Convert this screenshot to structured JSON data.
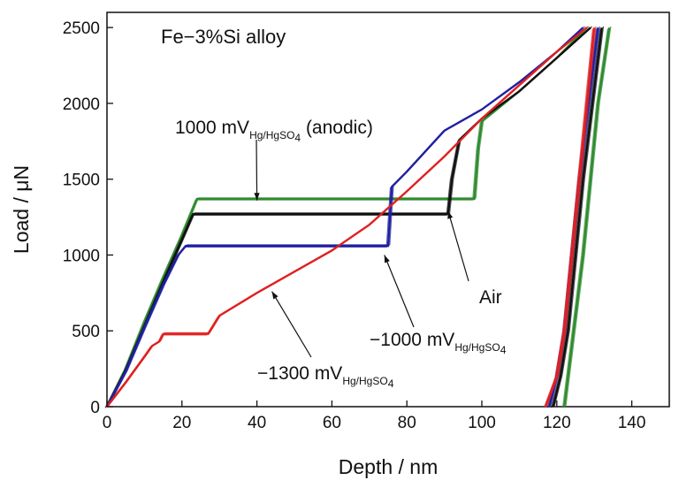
{
  "chart_data": {
    "type": "line",
    "title": "Fe−3%Si alloy",
    "xlabel": "Depth / nm",
    "ylabel": "Load / μN",
    "xlim": [
      0,
      150
    ],
    "ylim": [
      0,
      2600
    ],
    "xticks": [
      0,
      20,
      40,
      60,
      80,
      100,
      120,
      140
    ],
    "yticks": [
      0,
      500,
      1000,
      1500,
      2000,
      2500
    ],
    "x_tick_labels": [
      "0",
      "20",
      "40",
      "60",
      "80",
      "100",
      "120",
      "140"
    ],
    "y_tick_labels": [
      "0",
      "500",
      "1000",
      "1500",
      "2000",
      "2500"
    ],
    "grid": false,
    "legend": "none (inline annotations)",
    "series": [
      {
        "color": "#2e8b2e",
        "loading": [
          [
            0,
            0
          ],
          [
            5,
            250
          ],
          [
            10,
            560
          ],
          [
            15,
            850
          ],
          [
            20,
            1130
          ],
          [
            24,
            1370
          ],
          [
            98,
            1370
          ],
          [
            99,
            1700
          ],
          [
            100,
            1880
          ],
          [
            110,
            2080
          ],
          [
            120,
            2300
          ],
          [
            128,
            2500
          ]
        ],
        "unloading": [
          [
            134,
            2500
          ],
          [
            131,
            2000
          ],
          [
            129,
            1500
          ],
          [
            127,
            1000
          ],
          [
            124.5,
            500
          ],
          [
            123,
            200
          ],
          [
            122,
            0
          ]
        ]
      },
      {
        "color": "#111111",
        "loading": [
          [
            0,
            0
          ],
          [
            5,
            240
          ],
          [
            10,
            530
          ],
          [
            15,
            820
          ],
          [
            20,
            1100
          ],
          [
            23,
            1270
          ],
          [
            91,
            1270
          ],
          [
            92,
            1500
          ],
          [
            94,
            1760
          ],
          [
            100,
            1900
          ],
          [
            110,
            2080
          ],
          [
            120,
            2300
          ],
          [
            129,
            2500
          ]
        ],
        "unloading": [
          [
            132,
            2500
          ],
          [
            129.5,
            2000
          ],
          [
            127,
            1500
          ],
          [
            125,
            1000
          ],
          [
            123,
            500
          ],
          [
            121,
            200
          ],
          [
            119,
            0
          ]
        ]
      },
      {
        "color": "#2020a0",
        "loading": [
          [
            0,
            0
          ],
          [
            5,
            230
          ],
          [
            10,
            520
          ],
          [
            15,
            800
          ],
          [
            19,
            1000
          ],
          [
            21,
            1060
          ],
          [
            75,
            1060
          ],
          [
            76,
            1450
          ],
          [
            80,
            1550
          ],
          [
            90,
            1820
          ],
          [
            100,
            1960
          ],
          [
            110,
            2140
          ],
          [
            120,
            2340
          ],
          [
            127,
            2500
          ]
        ],
        "unloading": [
          [
            131,
            2500
          ],
          [
            128.5,
            2000
          ],
          [
            126,
            1500
          ],
          [
            124,
            1000
          ],
          [
            122,
            500
          ],
          [
            120,
            200
          ],
          [
            118,
            0
          ]
        ]
      },
      {
        "color": "#e02020",
        "loading": [
          [
            0,
            0
          ],
          [
            5,
            160
          ],
          [
            10,
            330
          ],
          [
            12,
            400
          ],
          [
            14,
            430
          ],
          [
            15,
            480
          ],
          [
            27,
            480
          ],
          [
            30,
            600
          ],
          [
            40,
            750
          ],
          [
            50,
            890
          ],
          [
            60,
            1030
          ],
          [
            70,
            1200
          ],
          [
            80,
            1420
          ],
          [
            90,
            1650
          ],
          [
            100,
            1900
          ],
          [
            110,
            2120
          ],
          [
            120,
            2340
          ],
          [
            128,
            2500
          ]
        ],
        "unloading": [
          [
            130,
            2500
          ],
          [
            128,
            2000
          ],
          [
            126,
            1500
          ],
          [
            124,
            1000
          ],
          [
            122,
            500
          ],
          [
            120,
            200
          ],
          [
            117,
            0
          ]
        ]
      }
    ],
    "annotations": [
      {
        "main": "1000 mV",
        "sub": "Hg/HgSO",
        "sub2": "4",
        "suffix": " (anodic)",
        "target": [
          40,
          1360
        ]
      },
      {
        "main": "Air",
        "sub": "",
        "sub2": "",
        "suffix": "",
        "target": [
          91,
          1290
        ]
      },
      {
        "main": "−1000 mV",
        "sub": "Hg/HgSO",
        "sub2": "4",
        "suffix": "",
        "target": [
          74,
          1000
        ]
      },
      {
        "main": "−1300 mV",
        "sub": "Hg/HgSO",
        "sub2": "4",
        "suffix": "",
        "target": [
          44,
          760
        ]
      }
    ]
  }
}
